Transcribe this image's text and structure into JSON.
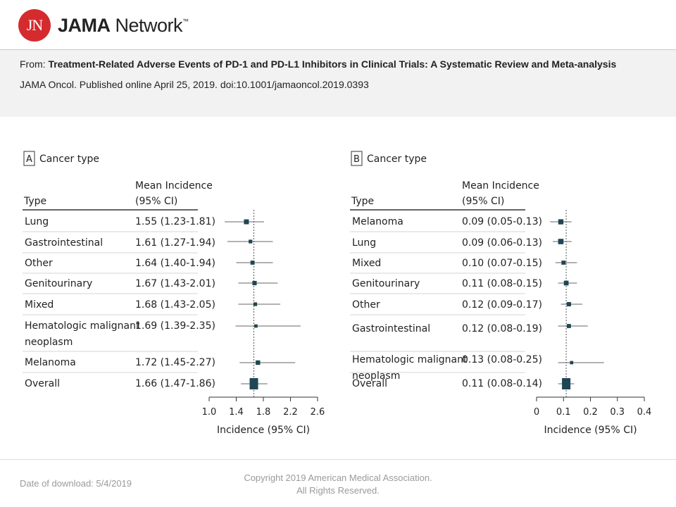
{
  "header": {
    "logo_badge": "JN",
    "logo_bold": "JAMA",
    "logo_rest": " Network",
    "logo_tm": "™",
    "from_label": "From: ",
    "article_title": "Treatment-Related Adverse Events of PD-1 and PD-L1 Inhibitors in Clinical Trials: A Systematic Review and Meta-analysis",
    "journal_line": "JAMA Oncol. Published online  April 25, 2019. doi:10.1001/jamaoncol.2019.0393"
  },
  "footer": {
    "download": "Date of download:  5/4/2019",
    "copyright_1": "Copyright 2019 American Medical Association.",
    "copyright_2": "All Rights Reserved."
  },
  "chart_data": [
    {
      "type": "forest",
      "panel_letter": "A",
      "panel_title": "Cancer type",
      "col_type": "Type",
      "col_mean_1": "Mean Incidence",
      "col_mean_2": "(95% CI)",
      "xlabel": "Incidence (95% CI)",
      "xlim": [
        1.0,
        2.6
      ],
      "ticks": [
        1.0,
        1.4,
        1.8,
        2.2,
        2.6
      ],
      "tick_labels": [
        "1.0",
        "1.4",
        "1.8",
        "2.2",
        "2.6"
      ],
      "reference": 1.66,
      "rows": [
        {
          "label": [
            "Lung"
          ],
          "ci_text": "1.55 (1.23-1.81)",
          "mean": 1.55,
          "lo": 1.23,
          "hi": 1.81,
          "weight": 0.5
        },
        {
          "label": [
            "Gastrointestinal"
          ],
          "ci_text": "1.61 (1.27-1.94)",
          "mean": 1.61,
          "lo": 1.27,
          "hi": 1.94,
          "weight": 0.2
        },
        {
          "label": [
            "Other"
          ],
          "ci_text": "1.64 (1.40-1.94)",
          "mean": 1.64,
          "lo": 1.4,
          "hi": 1.94,
          "weight": 0.3
        },
        {
          "label": [
            "Genitourinary"
          ],
          "ci_text": "1.67 (1.43-2.01)",
          "mean": 1.67,
          "lo": 1.43,
          "hi": 2.01,
          "weight": 0.35
        },
        {
          "label": [
            "Mixed"
          ],
          "ci_text": "1.68 (1.43-2.05)",
          "mean": 1.68,
          "lo": 1.43,
          "hi": 2.05,
          "weight": 0.2
        },
        {
          "label": [
            "Hematologic malignant",
            "neoplasm"
          ],
          "ci_text": "1.69 (1.39-2.35)",
          "mean": 1.69,
          "lo": 1.39,
          "hi": 2.35,
          "weight": 0.12
        },
        {
          "label": [
            "Melanoma"
          ],
          "ci_text": "1.72 (1.45-2.27)",
          "mean": 1.72,
          "lo": 1.45,
          "hi": 2.27,
          "weight": 0.4
        },
        {
          "label": [
            "Overall"
          ],
          "ci_text": "1.66 (1.47-1.86)",
          "mean": 1.66,
          "lo": 1.47,
          "hi": 1.86,
          "weight": 1.0
        }
      ]
    },
    {
      "type": "forest",
      "panel_letter": "B",
      "panel_title": "Cancer type",
      "col_type": "Type",
      "col_mean_1": "Mean Incidence",
      "col_mean_2": "(95% CI)",
      "xlabel": "Incidence (95% CI)",
      "xlim": [
        0,
        0.4
      ],
      "ticks": [
        0,
        0.1,
        0.2,
        0.3,
        0.4
      ],
      "tick_labels": [
        "0",
        "0.1",
        "0.2",
        "0.3",
        "0.4"
      ],
      "reference": 0.11,
      "rows": [
        {
          "label": [
            "Melanoma"
          ],
          "ci_text": "0.09 (0.05-0.13)",
          "mean": 0.09,
          "lo": 0.05,
          "hi": 0.13,
          "weight": 0.55
        },
        {
          "label": [
            "Lung"
          ],
          "ci_text": "0.09 (0.06-0.13)",
          "mean": 0.09,
          "lo": 0.06,
          "hi": 0.13,
          "weight": 0.6
        },
        {
          "label": [
            "Mixed"
          ],
          "ci_text": "0.10 (0.07-0.15)",
          "mean": 0.1,
          "lo": 0.07,
          "hi": 0.15,
          "weight": 0.3
        },
        {
          "label": [
            "Genitourinary"
          ],
          "ci_text": "0.11 (0.08-0.15)",
          "mean": 0.11,
          "lo": 0.08,
          "hi": 0.15,
          "weight": 0.45
        },
        {
          "label": [
            "Other"
          ],
          "ci_text": "0.12 (0.09-0.17)",
          "mean": 0.12,
          "lo": 0.09,
          "hi": 0.17,
          "weight": 0.35
        },
        {
          "label": [
            "Gastrointestinal"
          ],
          "ci_text": "0.12 (0.08-0.19)",
          "mean": 0.12,
          "lo": 0.08,
          "hi": 0.19,
          "weight": 0.3
        },
        {
          "label": [
            "Hematologic malignant",
            "neoplasm"
          ],
          "ci_text": "0.13 (0.08-0.25)",
          "mean": 0.13,
          "lo": 0.08,
          "hi": 0.25,
          "weight": 0.12
        },
        {
          "label": [
            "Overall"
          ],
          "ci_text": "0.11 (0.08-0.14)",
          "mean": 0.11,
          "lo": 0.08,
          "hi": 0.14,
          "weight": 1.0
        }
      ]
    }
  ]
}
